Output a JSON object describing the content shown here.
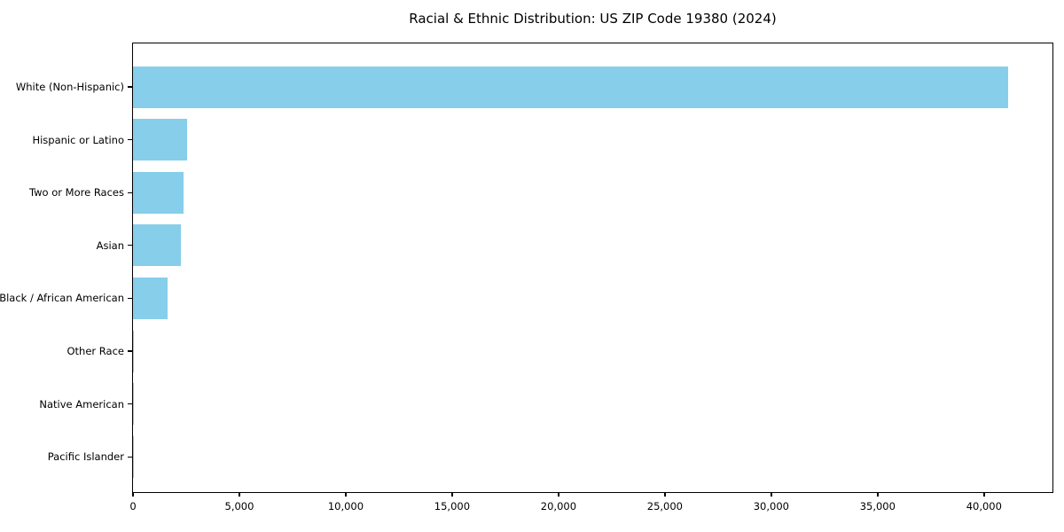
{
  "chart_data": {
    "type": "bar",
    "orientation": "horizontal",
    "title": "Racial & Ethnic Distribution: US ZIP Code 19380 (2024)",
    "categories": [
      "White (Non-Hispanic)",
      "Hispanic or Latino",
      "Two or More Races",
      "Asian",
      "Black / African American",
      "Other Race",
      "Native American",
      "Pacific Islander"
    ],
    "values": [
      41150,
      2540,
      2380,
      2250,
      1630,
      60,
      35,
      15
    ],
    "xlabel": "",
    "ylabel": "",
    "xlim": [
      0,
      43300
    ],
    "xticks": [
      0,
      5000,
      10000,
      15000,
      20000,
      25000,
      30000,
      35000,
      40000
    ],
    "xtick_labels": [
      "0",
      "5,000",
      "10,000",
      "15,000",
      "20,000",
      "25,000",
      "30,000",
      "35,000",
      "40,000"
    ],
    "bar_color": "#87CEEB",
    "axis_color": "#000000",
    "background_color": "#FFFFFF",
    "grid": false
  }
}
